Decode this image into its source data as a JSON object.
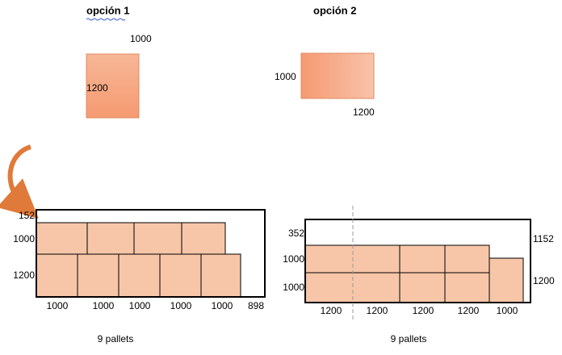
{
  "option1": {
    "title": "opción 1",
    "pallet": {
      "top_label": "1000",
      "side_label": "1200"
    },
    "layout": {
      "left_labels": [
        "152",
        "1000",
        "1200"
      ],
      "bottom_labels": [
        "1000",
        "1000",
        "1000",
        "1000",
        "1000",
        "898"
      ]
    },
    "caption": "9 pallets"
  },
  "option2": {
    "title": "opción 2",
    "pallet": {
      "side_label": "1000",
      "bottom_label": "1200"
    },
    "layout": {
      "left_labels": [
        "352",
        "1000",
        "1000"
      ],
      "right_labels": [
        "1152",
        "1200"
      ],
      "bottom_labels": [
        "1200",
        "1200",
        "1200",
        "1200",
        "1000"
      ]
    },
    "caption": "9 pallets"
  }
}
